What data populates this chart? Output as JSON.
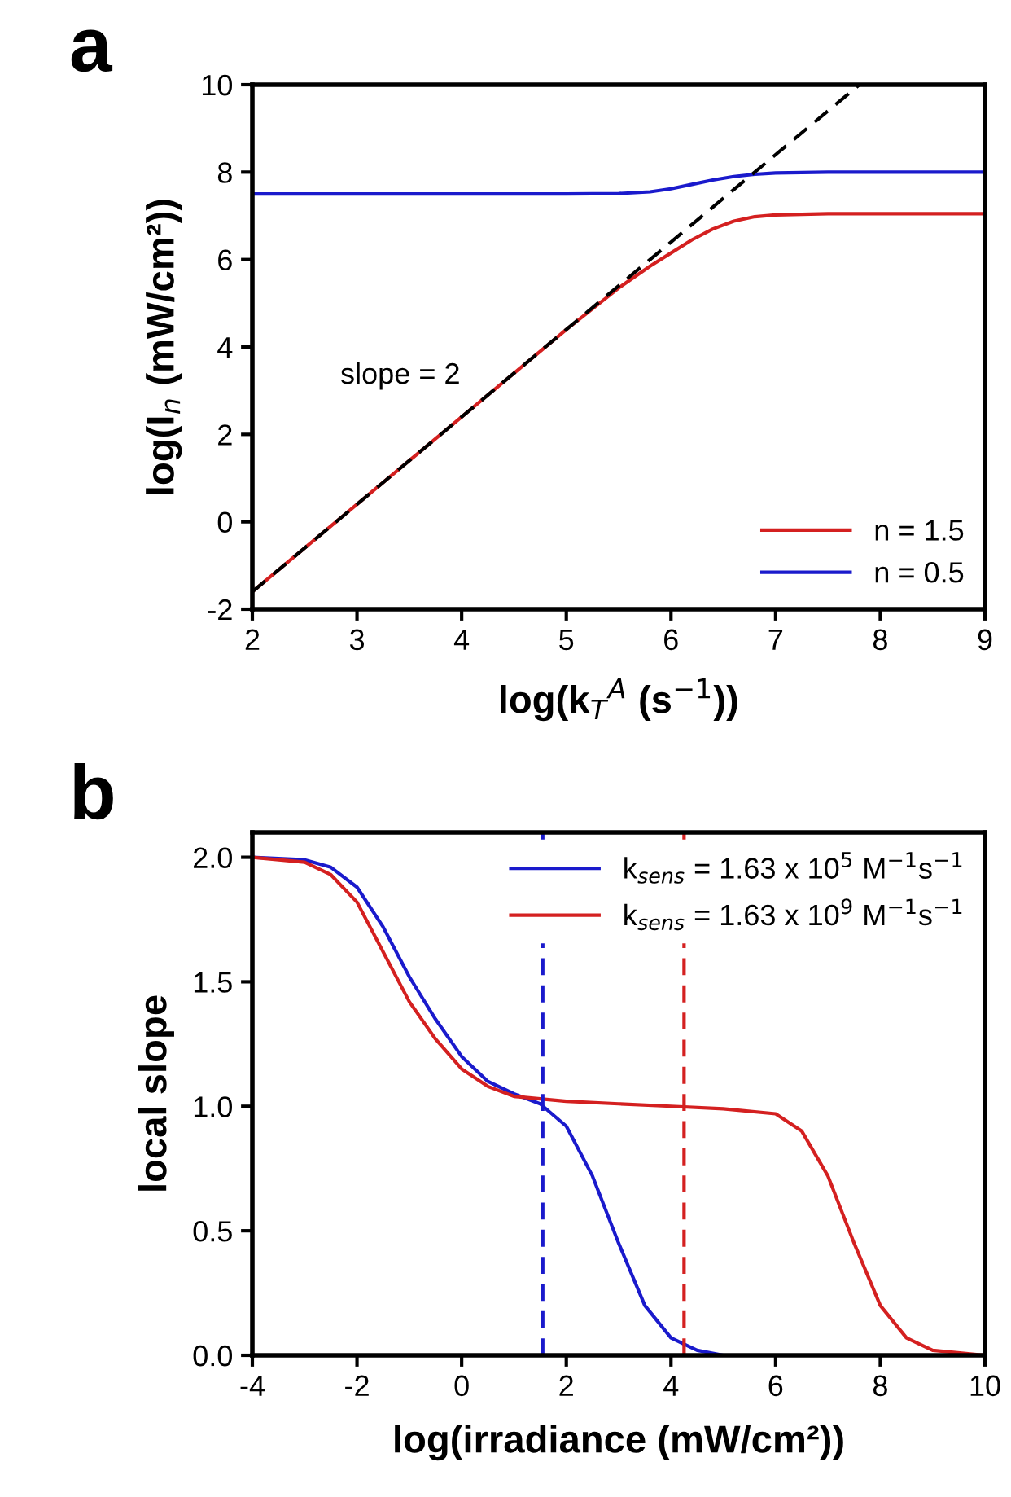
{
  "chart_data": [
    {
      "type": "line",
      "title": "a",
      "xlabel": "log(k$_{T}$$^{A}$ (s$^{−1}$))",
      "ylabel": "log(I$_{n}$ (mW/cm²))",
      "xlim": [
        2,
        9
      ],
      "xticks": [
        2,
        3,
        4,
        5,
        6,
        7,
        8,
        9
      ],
      "ylim": [
        -2,
        10
      ],
      "yticks": [
        -2,
        0,
        2,
        4,
        6,
        8,
        10
      ],
      "grid": false,
      "legend": "bottom right",
      "annotations": [
        "slope = 2"
      ],
      "series": [
        {
          "name": "n = 1.5",
          "color": "#d42020",
          "x": [
            2,
            3,
            4,
            5,
            5.5,
            5.8,
            6,
            6.2,
            6.4,
            6.6,
            6.8,
            7,
            7.5,
            8,
            9
          ],
          "values": [
            -1.6,
            0.4,
            2.4,
            4.4,
            5.35,
            5.85,
            6.15,
            6.45,
            6.7,
            6.88,
            6.98,
            7.02,
            7.05,
            7.05,
            7.05
          ]
        },
        {
          "name": "n = 0.5",
          "color": "#1a1acc",
          "x": [
            2,
            3,
            4,
            5,
            5.5,
            5.8,
            6,
            6.2,
            6.4,
            6.6,
            6.8,
            7,
            7.5,
            8,
            9
          ],
          "values": [
            7.5,
            7.5,
            7.5,
            7.5,
            7.51,
            7.55,
            7.62,
            7.72,
            7.82,
            7.9,
            7.95,
            7.98,
            8,
            8,
            8
          ]
        },
        {
          "color": "#000000",
          "line_style": "dashed",
          "x": [
            2,
            7.8
          ],
          "values": [
            -1.6,
            10
          ]
        }
      ]
    },
    {
      "type": "line",
      "title": "b",
      "xlabel": "log(irradiance (mW/cm²))",
      "ylabel": "local slope",
      "xlim": [
        -4,
        10
      ],
      "xticks": [
        -4,
        -2,
        0,
        2,
        4,
        6,
        8,
        10
      ],
      "ylim": [
        0,
        2.1
      ],
      "yticks": [
        {
          "value": 0,
          "label": "0.0"
        },
        0.5,
        {
          "value": 1,
          "label": "1.0"
        },
        1.5,
        {
          "value": 2,
          "label": "2.0"
        }
      ],
      "grid": false,
      "legend": "top right",
      "ref_lines": [
        {
          "axis": "x",
          "value": 1.55,
          "color": "#1a1acc",
          "line_style": "dashed"
        },
        {
          "axis": "x",
          "value": 4.25,
          "color": "#d42020",
          "line_style": "dashed"
        }
      ],
      "series": [
        {
          "name": "k$_{sens}$ = 1.63 x 10$^{5}$ M$^{−1}$s$^{−1}$",
          "color": "#1a1acc",
          "x": [
            -4,
            -3,
            -2.5,
            -2,
            -1.5,
            -1,
            -0.5,
            0,
            0.5,
            1,
            1.5,
            2,
            2.5,
            3,
            3.5,
            4,
            4.5,
            5,
            6
          ],
          "values": [
            2.0,
            1.99,
            1.96,
            1.88,
            1.72,
            1.52,
            1.35,
            1.2,
            1.1,
            1.05,
            1.01,
            0.92,
            0.72,
            0.45,
            0.2,
            0.07,
            0.02,
            0.0,
            0.0
          ]
        },
        {
          "name": "k$_{sens}$ = 1.63 x 10$^{9}$ M$^{−1}$s$^{−1}$",
          "color": "#d42020",
          "x": [
            -4,
            -3,
            -2.5,
            -2,
            -1.5,
            -1,
            -0.5,
            0,
            0.5,
            1,
            2,
            3,
            4,
            5,
            6,
            6.5,
            7,
            7.5,
            8,
            8.5,
            9,
            10
          ],
          "values": [
            2.0,
            1.98,
            1.93,
            1.82,
            1.62,
            1.42,
            1.27,
            1.15,
            1.08,
            1.04,
            1.02,
            1.01,
            1.0,
            0.99,
            0.97,
            0.9,
            0.72,
            0.45,
            0.2,
            0.07,
            0.02,
            0.0
          ]
        }
      ]
    }
  ]
}
